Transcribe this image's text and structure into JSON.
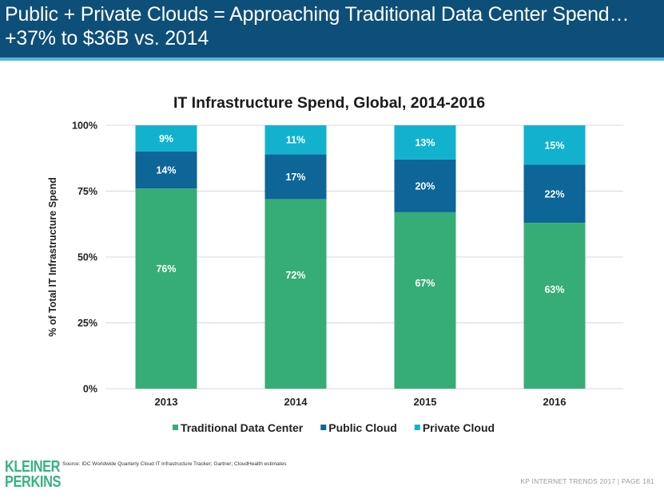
{
  "header": {
    "title_line1": "Public + Private Clouds = Approaching Traditional Data Center Spend…",
    "title_line2": "+37% to $36B vs. 2014",
    "bg_color": "#0d4f78",
    "accent_line_color": "#52b6d8"
  },
  "chart_data": {
    "type": "bar",
    "stacked": true,
    "title": "IT Infrastructure Spend, Global, 2014-2016",
    "xlabel": "",
    "ylabel": "% of Total IT Infrastructure Spend",
    "ylim": [
      0,
      100
    ],
    "yticks": [
      0,
      25,
      50,
      75,
      100
    ],
    "ytick_labels": [
      "0%",
      "25%",
      "50%",
      "75%",
      "100%"
    ],
    "grid": true,
    "legend_position": "bottom",
    "categories": [
      "2013",
      "2014",
      "2015",
      "2016"
    ],
    "series": [
      {
        "name": "Traditional Data Center",
        "color": "#36ad76",
        "values": [
          76,
          72,
          67,
          63
        ],
        "labels": [
          "76%",
          "72%",
          "67%",
          "63%"
        ]
      },
      {
        "name": "Public Cloud",
        "color": "#0d6598",
        "values": [
          14,
          17,
          20,
          22
        ],
        "labels": [
          "14%",
          "17%",
          "20%",
          "22%"
        ]
      },
      {
        "name": "Private Cloud",
        "color": "#12b2cf",
        "values": [
          9,
          11,
          13,
          15
        ],
        "labels": [
          "9%",
          "11%",
          "13%",
          "15%"
        ]
      }
    ]
  },
  "footer": {
    "logo_line1": "KLEINER",
    "logo_line2": "PERKINS",
    "source": "Source: IDC Worldwide Quarterly Cloud IT Infrastructure Tracker; Gartner; CloudHealth estimates",
    "page_label": "KP INTERNET TRENDS 2017  |  PAGE 181"
  }
}
